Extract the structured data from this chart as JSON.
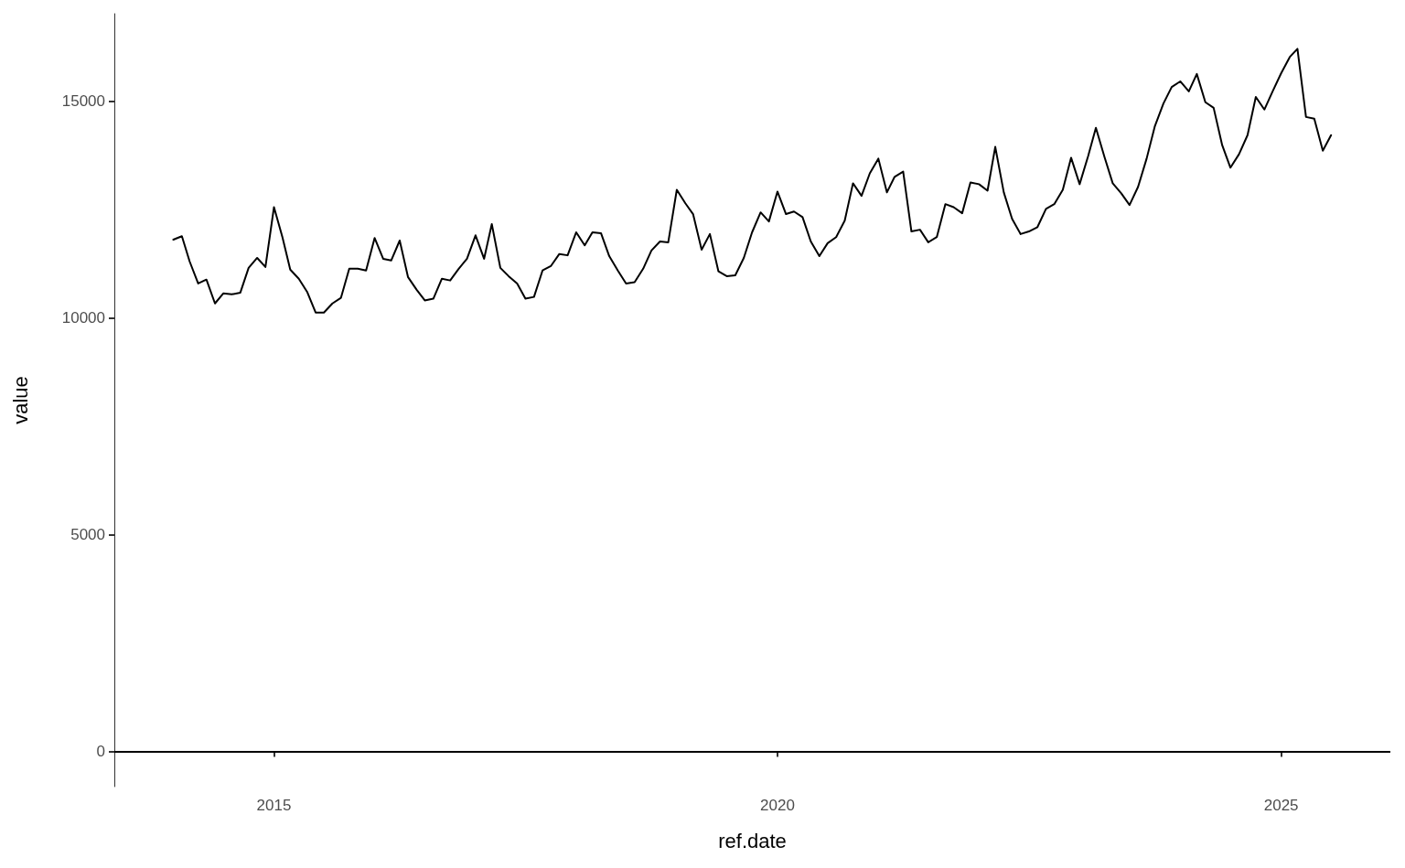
{
  "chart_data": {
    "type": "line",
    "xlabel": "ref.date",
    "ylabel": "value",
    "x": [
      "2014-01",
      "2014-02",
      "2014-03",
      "2014-04",
      "2014-05",
      "2014-06",
      "2014-07",
      "2014-08",
      "2014-09",
      "2014-10",
      "2014-11",
      "2014-12",
      "2015-01",
      "2015-02",
      "2015-03",
      "2015-04",
      "2015-05",
      "2015-06",
      "2015-07",
      "2015-08",
      "2015-09",
      "2015-10",
      "2015-11",
      "2015-12",
      "2016-01",
      "2016-02",
      "2016-03",
      "2016-04",
      "2016-05",
      "2016-06",
      "2016-07",
      "2016-08",
      "2016-09",
      "2016-10",
      "2016-11",
      "2016-12",
      "2017-01",
      "2017-02",
      "2017-03",
      "2017-04",
      "2017-05",
      "2017-06",
      "2017-07",
      "2017-08",
      "2017-09",
      "2017-10",
      "2017-11",
      "2017-12",
      "2018-01",
      "2018-02",
      "2018-03",
      "2018-04",
      "2018-05",
      "2018-06",
      "2018-07",
      "2018-08",
      "2018-09",
      "2018-10",
      "2018-11",
      "2018-12",
      "2019-01",
      "2019-02",
      "2019-03",
      "2019-04",
      "2019-05",
      "2019-06",
      "2019-07",
      "2019-08",
      "2019-09",
      "2019-10",
      "2019-11",
      "2019-12",
      "2020-01",
      "2020-02",
      "2020-03",
      "2020-04",
      "2020-05",
      "2020-06",
      "2020-07",
      "2020-08",
      "2020-09",
      "2020-10",
      "2020-11",
      "2020-12",
      "2021-01",
      "2021-02",
      "2021-03",
      "2021-04",
      "2021-05",
      "2021-06",
      "2021-07",
      "2021-08",
      "2021-09",
      "2021-10",
      "2021-11",
      "2021-12",
      "2022-01",
      "2022-02",
      "2022-03",
      "2022-04",
      "2022-05",
      "2022-06",
      "2022-07",
      "2022-08",
      "2022-09",
      "2022-10",
      "2022-11",
      "2022-12",
      "2023-01",
      "2023-02",
      "2023-03",
      "2023-04",
      "2023-05",
      "2023-06",
      "2023-07",
      "2023-08",
      "2023-09",
      "2023-10",
      "2023-11",
      "2023-12",
      "2024-01",
      "2024-02",
      "2024-03",
      "2024-04",
      "2024-05",
      "2024-06",
      "2024-07",
      "2024-08",
      "2024-09",
      "2024-10",
      "2024-11",
      "2024-12",
      "2025-01",
      "2025-02",
      "2025-03",
      "2025-04",
      "2025-05",
      "2025-06",
      "2025-07"
    ],
    "series": [
      {
        "color": "#000000",
        "values": [
          11800,
          11880,
          11300,
          10790,
          10880,
          10330,
          10560,
          10540,
          10580,
          11150,
          11380,
          11170,
          12550,
          11850,
          11110,
          10900,
          10600,
          10120,
          10120,
          10330,
          10460,
          11130,
          11130,
          11090,
          11840,
          11360,
          11320,
          11780,
          10940,
          10650,
          10400,
          10440,
          10900,
          10860,
          11130,
          11360,
          11900,
          11360,
          12160,
          11150,
          10960,
          10790,
          10440,
          10480,
          11090,
          11190,
          11470,
          11440,
          11970,
          11670,
          11970,
          11950,
          11420,
          11090,
          10790,
          10820,
          11130,
          11550,
          11760,
          11740,
          12950,
          12640,
          12390,
          11570,
          11930,
          11070,
          10960,
          10980,
          11380,
          11970,
          12430,
          12220,
          12910,
          12390,
          12450,
          12320,
          11760,
          11420,
          11720,
          11860,
          12240,
          13100,
          12810,
          13330,
          13670,
          12890,
          13250,
          13370,
          11990,
          12030,
          11740,
          11860,
          12620,
          12550,
          12410,
          13120,
          13080,
          12930,
          13940,
          12890,
          12280,
          11930,
          11990,
          12090,
          12510,
          12620,
          12950,
          13690,
          13080,
          13730,
          14380,
          13710,
          13100,
          12870,
          12600,
          13020,
          13670,
          14420,
          14940,
          15320,
          15450,
          15220,
          15620,
          14970,
          14840,
          13980,
          13460,
          13770,
          14210,
          15090,
          14800,
          15220,
          15640,
          16010,
          16200,
          14630,
          14590,
          13850,
          14210
        ]
      }
    ],
    "xlim": [
      "2013-06-01",
      "2026-02-01"
    ],
    "xticks": [
      {
        "value": "2015-01-01",
        "label": "2015"
      },
      {
        "value": "2020-01-01",
        "label": "2020"
      },
      {
        "value": "2025-01-01",
        "label": "2025"
      }
    ],
    "ylim": [
      -810,
      17010
    ],
    "yticks": [
      0,
      5000,
      10000,
      15000
    ],
    "ref_lines": [
      {
        "axis": "y",
        "value": 0,
        "color": "#000000"
      }
    ],
    "grid": false,
    "marker": "none",
    "line_style": "solid"
  }
}
